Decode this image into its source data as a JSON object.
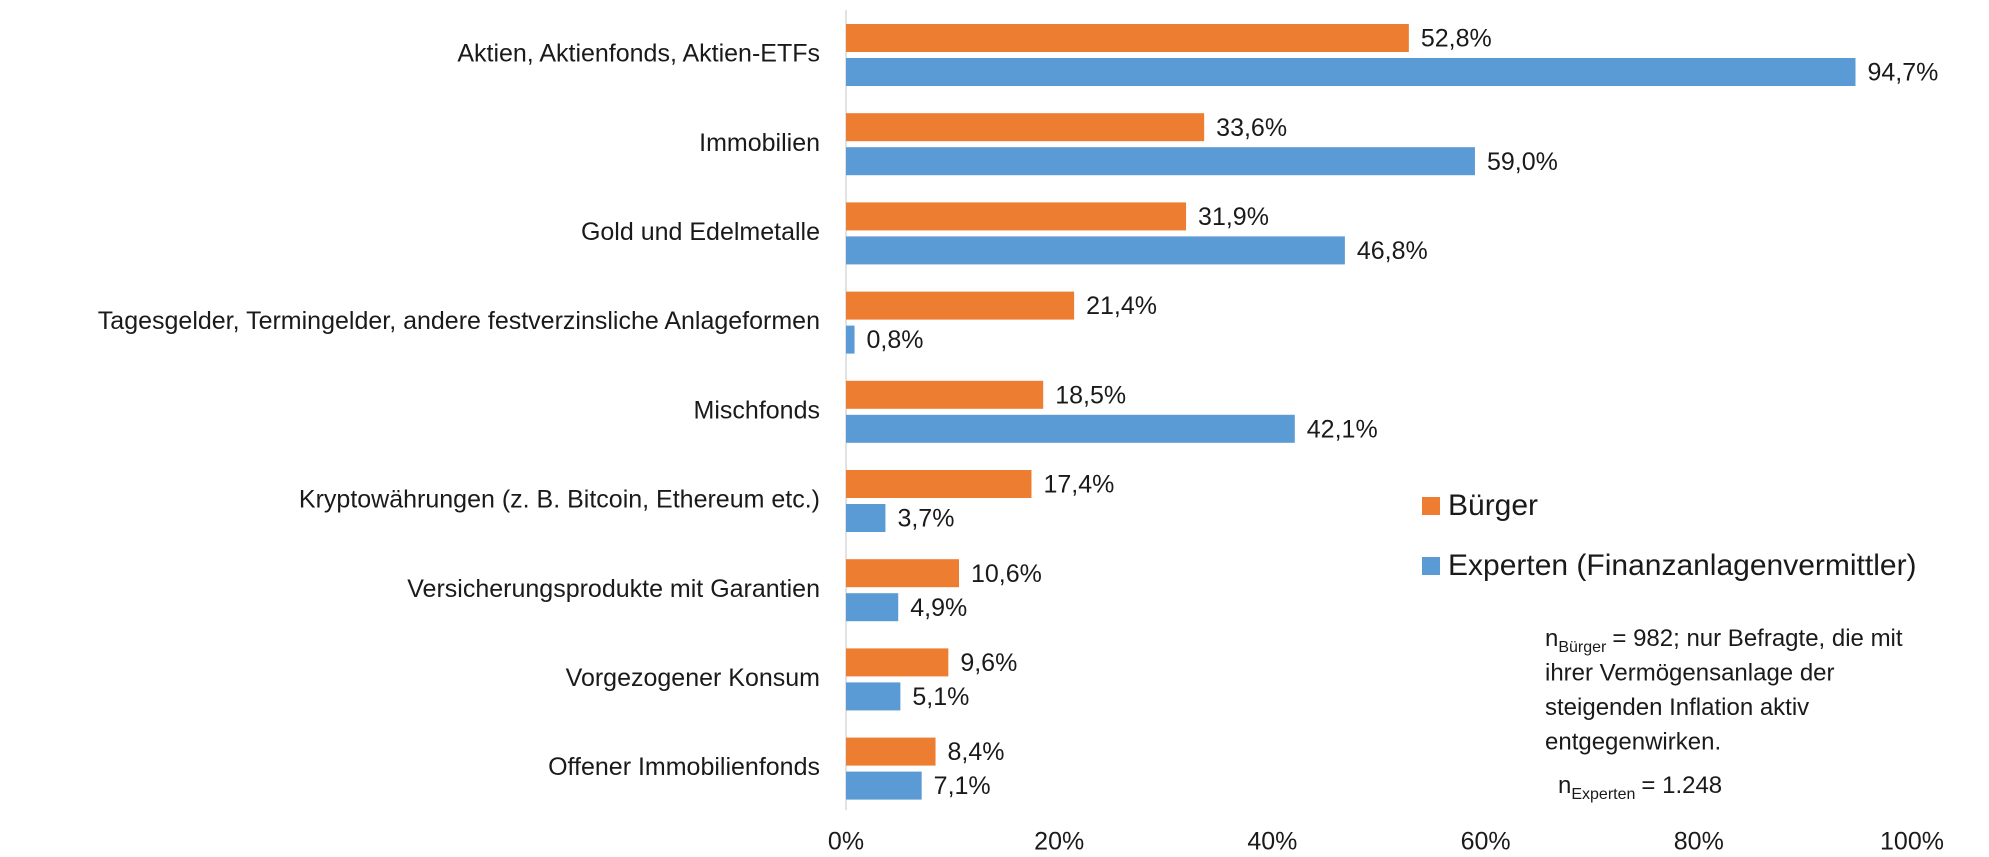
{
  "chart_data": {
    "type": "bar",
    "orientation": "horizontal",
    "categories": [
      "Aktien, Aktienfonds, Aktien-ETFs",
      "Immobilien",
      "Gold und Edelmetalle",
      "Tagesgelder, Termingelder, andere festverzinsliche Anlageformen",
      "Mischfonds",
      "Kryptowährungen (z. B. Bitcoin, Ethereum etc.)",
      "Versicherungsprodukte mit Garantien",
      "Vorgezogener Konsum",
      "Offener Immobilienfonds"
    ],
    "series": [
      {
        "name": "Bürger",
        "color": "#ed7d31",
        "values": [
          52.8,
          33.6,
          31.9,
          21.4,
          18.5,
          17.4,
          10.6,
          9.6,
          8.4
        ],
        "value_labels": [
          "52,8%",
          "33,6%",
          "31,9%",
          "21,4%",
          "18,5%",
          "17,4%",
          "10,6%",
          "9,6%",
          "8,4%"
        ]
      },
      {
        "name": "Experten (Finanzanlagenvermittler)",
        "color": "#5b9bd5",
        "values": [
          94.7,
          59.0,
          46.8,
          0.8,
          42.1,
          3.7,
          4.9,
          5.1,
          7.1
        ],
        "value_labels": [
          "94,7%",
          "59,0%",
          "46,8%",
          "0,8%",
          "42,1%",
          "3,7%",
          "4,9%",
          "5,1%",
          "7,1%"
        ]
      }
    ],
    "xlim": [
      0,
      100
    ],
    "xticks": [
      {
        "value": 0,
        "label": "0%"
      },
      {
        "value": 20,
        "label": "20%"
      },
      {
        "value": 40,
        "label": "40%"
      },
      {
        "value": 60,
        "label": "60%"
      },
      {
        "value": 80,
        "label": "80%"
      },
      {
        "value": 100,
        "label": "100%"
      }
    ],
    "grid": false,
    "legend": "right",
    "notes": [
      {
        "base": "n",
        "sub": "Bürger",
        "lines": [
          "= 982; nur Befragte, die mit",
          "ihrer Vermögensanlage der",
          "steigenden Inflation aktiv",
          "entgegenwirken."
        ]
      },
      {
        "base": "n",
        "sub": "Experten",
        "lines": [
          "= 1.248"
        ]
      }
    ]
  }
}
